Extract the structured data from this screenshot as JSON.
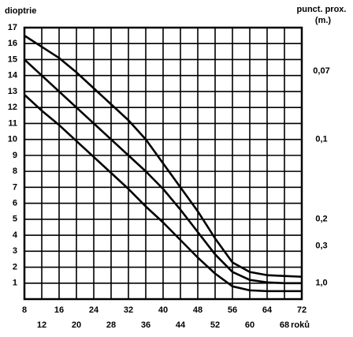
{
  "chart_data": {
    "type": "line",
    "y_label": "dioptrie",
    "y2_label": "punct. prox.",
    "y2_unit": "(m.)",
    "x_label": "roků",
    "x": [
      8,
      12,
      16,
      20,
      24,
      28,
      32,
      36,
      40,
      44,
      48,
      52,
      56,
      60,
      64,
      68,
      72
    ],
    "series": [
      {
        "color": "#000000",
        "values": [
          16.5,
          15.8,
          15.1,
          14.2,
          13.2,
          12.2,
          11.2,
          10.0,
          8.5,
          7.0,
          5.5,
          3.8,
          2.3,
          1.7,
          1.5,
          1.45,
          1.4
        ]
      },
      {
        "color": "#000000",
        "values": [
          15.0,
          14.0,
          13.0,
          12.0,
          11.0,
          10.0,
          9.0,
          8.0,
          6.9,
          5.6,
          4.2,
          2.8,
          1.7,
          1.2,
          1.05,
          1.0,
          1.0
        ]
      },
      {
        "color": "#000000",
        "values": [
          12.8,
          11.8,
          10.9,
          9.9,
          8.9,
          7.9,
          6.9,
          5.8,
          4.8,
          3.7,
          2.6,
          1.6,
          0.8,
          0.55,
          0.5,
          0.5,
          0.5
        ]
      }
    ],
    "xlim": [
      8,
      72
    ],
    "xticks": [
      8,
      12,
      16,
      20,
      24,
      28,
      32,
      36,
      40,
      44,
      48,
      52,
      56,
      60,
      64,
      68,
      72
    ],
    "ylim": [
      0,
      17
    ],
    "yticks": [
      1,
      2,
      3,
      4,
      5,
      6,
      7,
      8,
      9,
      10,
      11,
      12,
      13,
      14,
      15,
      16,
      17
    ],
    "y2scale": "reciprocal",
    "y2ticks": [
      {
        "value": 0.07,
        "label": "0,07"
      },
      {
        "value": 0.1,
        "label": "0,1"
      },
      {
        "value": 0.2,
        "label": "0,2"
      },
      {
        "value": 0.3,
        "label": "0,3"
      },
      {
        "value": 1.0,
        "label": "1,0"
      }
    ],
    "grid": true
  }
}
